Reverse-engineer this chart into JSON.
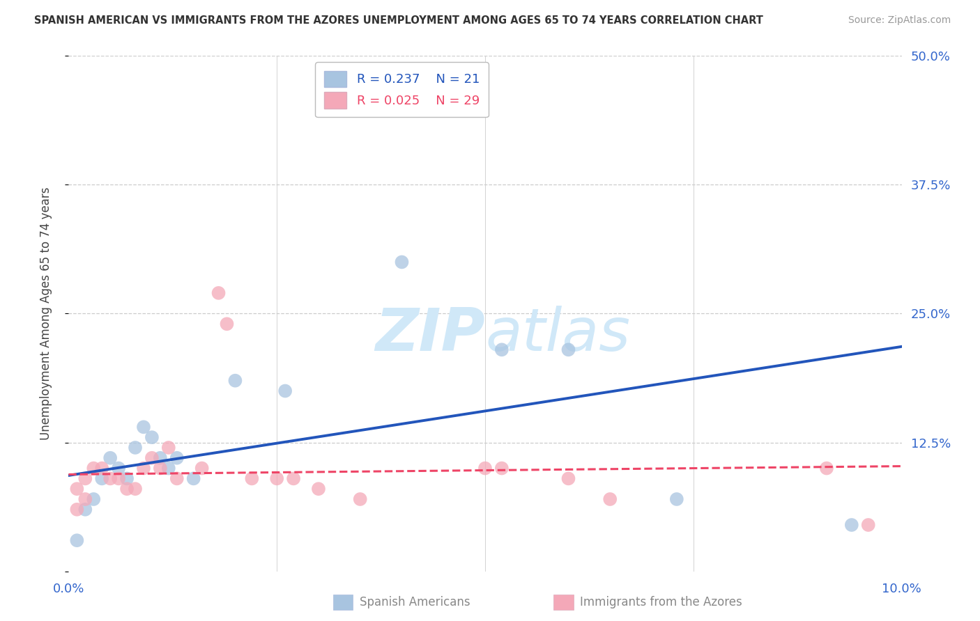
{
  "title": "SPANISH AMERICAN VS IMMIGRANTS FROM THE AZORES UNEMPLOYMENT AMONG AGES 65 TO 74 YEARS CORRELATION CHART",
  "source": "Source: ZipAtlas.com",
  "xlabel_blue": "Spanish Americans",
  "xlabel_pink": "Immigrants from the Azores",
  "ylabel": "Unemployment Among Ages 65 to 74 years",
  "xlim": [
    0.0,
    0.1
  ],
  "ylim": [
    0.0,
    0.5
  ],
  "xticks": [
    0.0,
    0.025,
    0.05,
    0.075,
    0.1
  ],
  "xtick_labels": [
    "0.0%",
    "",
    "",
    "",
    "10.0%"
  ],
  "yticks_right": [
    0.0,
    0.125,
    0.25,
    0.375,
    0.5
  ],
  "ytick_labels_right": [
    "",
    "12.5%",
    "25.0%",
    "37.5%",
    "50.0%"
  ],
  "legend_blue_R": "R = 0.237",
  "legend_blue_N": "N = 21",
  "legend_pink_R": "R = 0.025",
  "legend_pink_N": "N = 29",
  "blue_color": "#a8c4e0",
  "pink_color": "#f4a8b8",
  "blue_line_color": "#2255bb",
  "pink_line_color": "#ee4466",
  "background_color": "#ffffff",
  "grid_color": "#cccccc",
  "watermark_color": "#d0e8f8",
  "blue_x": [
    0.001,
    0.002,
    0.003,
    0.004,
    0.005,
    0.006,
    0.007,
    0.008,
    0.009,
    0.01,
    0.011,
    0.012,
    0.013,
    0.015,
    0.02,
    0.026,
    0.04,
    0.052,
    0.06,
    0.073,
    0.094
  ],
  "blue_y": [
    0.03,
    0.06,
    0.07,
    0.09,
    0.11,
    0.1,
    0.09,
    0.12,
    0.14,
    0.13,
    0.11,
    0.1,
    0.11,
    0.09,
    0.185,
    0.175,
    0.3,
    0.215,
    0.215,
    0.07,
    0.045
  ],
  "pink_x": [
    0.001,
    0.001,
    0.002,
    0.002,
    0.003,
    0.004,
    0.005,
    0.006,
    0.007,
    0.008,
    0.009,
    0.01,
    0.011,
    0.012,
    0.013,
    0.016,
    0.018,
    0.019,
    0.022,
    0.025,
    0.027,
    0.03,
    0.035,
    0.05,
    0.052,
    0.06,
    0.065,
    0.091,
    0.096
  ],
  "pink_y": [
    0.06,
    0.08,
    0.07,
    0.09,
    0.1,
    0.1,
    0.09,
    0.09,
    0.08,
    0.08,
    0.1,
    0.11,
    0.1,
    0.12,
    0.09,
    0.1,
    0.27,
    0.24,
    0.09,
    0.09,
    0.09,
    0.08,
    0.07,
    0.1,
    0.1,
    0.09,
    0.07,
    0.1,
    0.045
  ],
  "blue_trend_x": [
    0.0,
    0.1
  ],
  "blue_trend_y": [
    0.093,
    0.218
  ],
  "pink_trend_x": [
    0.0,
    0.1
  ],
  "pink_trend_y": [
    0.094,
    0.102
  ]
}
